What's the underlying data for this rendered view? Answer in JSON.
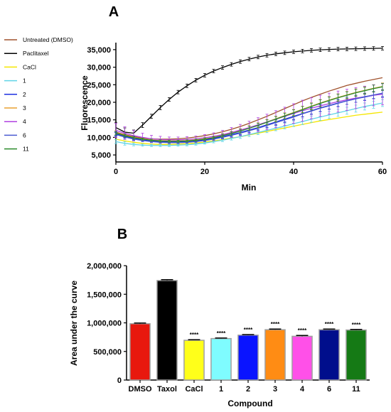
{
  "chart_data": [
    {
      "type": "line",
      "panel_label": "A",
      "xlabel": "Min",
      "ylabel": "Fluorescence",
      "xlim": [
        0,
        60
      ],
      "ylim": [
        3000,
        37000
      ],
      "x_ticks": [
        0,
        20,
        40,
        60
      ],
      "y_ticks": [
        5000,
        10000,
        15000,
        20000,
        25000,
        30000,
        35000
      ],
      "y_tick_labels": [
        "5,000",
        "10,000",
        "15,000",
        "20,000",
        "25,000",
        "30,000",
        "35,000"
      ],
      "grid": false,
      "legend_position": "left",
      "x": [
        0,
        2,
        4,
        6,
        8,
        10,
        12,
        14,
        16,
        18,
        20,
        22,
        24,
        26,
        28,
        30,
        32,
        34,
        36,
        38,
        40,
        42,
        44,
        46,
        48,
        50,
        52,
        54,
        56,
        58,
        60
      ],
      "series": [
        {
          "name": "Untreated (DMSO)",
          "color": "#a0522d",
          "values": [
            11500,
            10800,
            10200,
            9800,
            9600,
            9500,
            9500,
            9600,
            9800,
            10100,
            10500,
            11000,
            11600,
            12300,
            13100,
            14000,
            15000,
            16000,
            17100,
            18200,
            19300,
            20400,
            21400,
            22300,
            23200,
            24000,
            24800,
            25400,
            26000,
            26500,
            27000
          ],
          "error": []
        },
        {
          "name": "Paclitaxel",
          "color": "#000000",
          "values": [
            12800,
            11500,
            11200,
            13500,
            16000,
            18500,
            20800,
            22900,
            24700,
            26300,
            27700,
            28900,
            29900,
            30800,
            31600,
            32300,
            32900,
            33400,
            33800,
            34100,
            34400,
            34600,
            34800,
            34950,
            35050,
            35150,
            35200,
            35250,
            35300,
            35350,
            35400
          ],
          "error": [
            1500,
            1200,
            900,
            700,
            600,
            600,
            500,
            500,
            500,
            500,
            500,
            500,
            500,
            500,
            500,
            500,
            500,
            500,
            500,
            500,
            500,
            500,
            500,
            500,
            500,
            500,
            500,
            500,
            500,
            500,
            500
          ]
        },
        {
          "name": "CaCl",
          "color": "#f5e600",
          "values": [
            9500,
            9000,
            8600,
            8300,
            8100,
            8000,
            8000,
            8100,
            8200,
            8400,
            8700,
            9000,
            9400,
            9800,
            10200,
            10700,
            11200,
            11700,
            12200,
            12700,
            13200,
            13700,
            14200,
            14700,
            15100,
            15500,
            15900,
            16300,
            16600,
            16900,
            17200
          ],
          "error": []
        },
        {
          "name": "1",
          "color": "#5fd4e6",
          "values": [
            8800,
            8300,
            8000,
            7800,
            7700,
            7700,
            7700,
            7800,
            7900,
            8100,
            8400,
            8800,
            9200,
            9700,
            10200,
            10800,
            11400,
            12000,
            12600,
            13200,
            13900,
            14500,
            15200,
            15800,
            16400,
            17000,
            17600,
            18200,
            18800,
            19300,
            19800
          ],
          "error": [
            600,
            500,
            400,
            300,
            300,
            300,
            300,
            300,
            300,
            300,
            300,
            350,
            400,
            450,
            500,
            550,
            600,
            650,
            700,
            750,
            800,
            850,
            900,
            950,
            1000,
            1000,
            1000,
            1000,
            1000,
            1000,
            1000
          ]
        },
        {
          "name": "2",
          "color": "#1c2fe0",
          "values": [
            11000,
            10300,
            9700,
            9300,
            9000,
            8800,
            8700,
            8700,
            8800,
            9000,
            9300,
            9700,
            10200,
            10800,
            11400,
            12100,
            12800,
            13600,
            14400,
            15200,
            16000,
            16800,
            17600,
            18400,
            19100,
            19800,
            20400,
            21000,
            21500,
            22000,
            22400
          ],
          "error": [
            500,
            400,
            400,
            300,
            300,
            300,
            300,
            300,
            300,
            300,
            350,
            400,
            450,
            500,
            550,
            600,
            650,
            700,
            750,
            800,
            850,
            900,
            950,
            1000,
            1000,
            1000,
            1000,
            1000,
            1000,
            1000,
            1000
          ]
        },
        {
          "name": "3",
          "color": "#e8a030",
          "values": [
            11300,
            10600,
            10000,
            9600,
            9300,
            9100,
            9000,
            9000,
            9100,
            9300,
            9600,
            10000,
            10600,
            11200,
            11900,
            12700,
            13500,
            14400,
            15300,
            16200,
            17100,
            18000,
            18900,
            19800,
            20600,
            21400,
            22100,
            22800,
            23400,
            24000,
            24500
          ],
          "error": [
            600,
            500,
            400,
            300,
            300,
            300,
            300,
            300,
            300,
            300,
            350,
            400,
            450,
            500,
            550,
            600,
            650,
            700,
            750,
            800,
            850,
            900,
            950,
            1000,
            1000,
            1000,
            1000,
            1000,
            1000,
            1000,
            1000
          ]
        },
        {
          "name": "4",
          "color": "#b040e0",
          "values": [
            12000,
            11200,
            10500,
            10000,
            9600,
            9400,
            9300,
            9300,
            9400,
            9600,
            9900,
            10300,
            10800,
            11400,
            12100,
            12800,
            13600,
            14400,
            15200,
            16000,
            16800,
            17600,
            18300,
            19000,
            19600,
            20200,
            20700,
            21200,
            21600,
            22000,
            22300
          ],
          "error": [
            2000,
            1800,
            1500,
            1200,
            1000,
            900,
            800,
            800,
            800,
            800,
            900,
            1000,
            1200,
            1400,
            1600,
            1800,
            2000,
            2200,
            2400,
            2600,
            2800,
            3000,
            3000,
            3000,
            3000,
            3000,
            3000,
            3000,
            3000,
            3000,
            3000
          ]
        },
        {
          "name": "6",
          "color": "#4a5ad0",
          "values": [
            10800,
            10100,
            9500,
            9100,
            8800,
            8600,
            8500,
            8500,
            8600,
            8800,
            9100,
            9500,
            10000,
            10600,
            11200,
            11900,
            12600,
            13400,
            14200,
            15000,
            15800,
            16700,
            17500,
            18300,
            19000,
            19700,
            20400,
            21000,
            21600,
            22100,
            22600
          ],
          "error": [
            500,
            400,
            400,
            300,
            300,
            300,
            300,
            300,
            300,
            300,
            350,
            400,
            450,
            500,
            550,
            600,
            650,
            700,
            750,
            800,
            850,
            900,
            950,
            1000,
            1000,
            1000,
            1000,
            1000,
            1000,
            1000,
            1000
          ]
        },
        {
          "name": "11",
          "color": "#2a8a2a",
          "values": [
            11200,
            10500,
            9900,
            9500,
            9200,
            9000,
            8900,
            8900,
            9000,
            9200,
            9500,
            9900,
            10500,
            11100,
            11800,
            12600,
            13400,
            14300,
            15200,
            16100,
            17000,
            17900,
            18800,
            19700,
            20500,
            21300,
            22000,
            22700,
            23300,
            23900,
            24400
          ],
          "error": [
            500,
            400,
            400,
            300,
            300,
            300,
            300,
            300,
            300,
            300,
            350,
            400,
            450,
            500,
            550,
            600,
            650,
            700,
            750,
            800,
            850,
            900,
            950,
            1000,
            1000,
            1000,
            1000,
            1000,
            1000,
            1000,
            1000
          ]
        }
      ]
    },
    {
      "type": "bar",
      "panel_label": "B",
      "xlabel": "Compound",
      "ylabel": "Area under the curve",
      "ylim": [
        0,
        2000000
      ],
      "y_ticks": [
        0,
        500000,
        1000000,
        1500000,
        2000000
      ],
      "y_tick_labels": [
        "0",
        "500,000",
        "1,000,000",
        "1,500,000",
        "2,000,000"
      ],
      "categories": [
        "DMSO",
        "Taxol",
        "CaCl",
        "1",
        "2",
        "3",
        "4",
        "6",
        "11"
      ],
      "values": [
        985000,
        1740000,
        695000,
        725000,
        785000,
        880000,
        765000,
        880000,
        875000
      ],
      "errors": [
        12000,
        15000,
        10000,
        10000,
        10000,
        12000,
        15000,
        12000,
        10000
      ],
      "colors": [
        "#e8180e",
        "#000000",
        "#ffff1a",
        "#7ffcff",
        "#0a14ff",
        "#ff8c14",
        "#ff50e8",
        "#000e8c",
        "#157a15"
      ],
      "edge_color": "#a0a0a0",
      "annotations": [
        "",
        "",
        "****",
        "****",
        "****",
        "****",
        "****",
        "****",
        "****"
      ]
    }
  ]
}
